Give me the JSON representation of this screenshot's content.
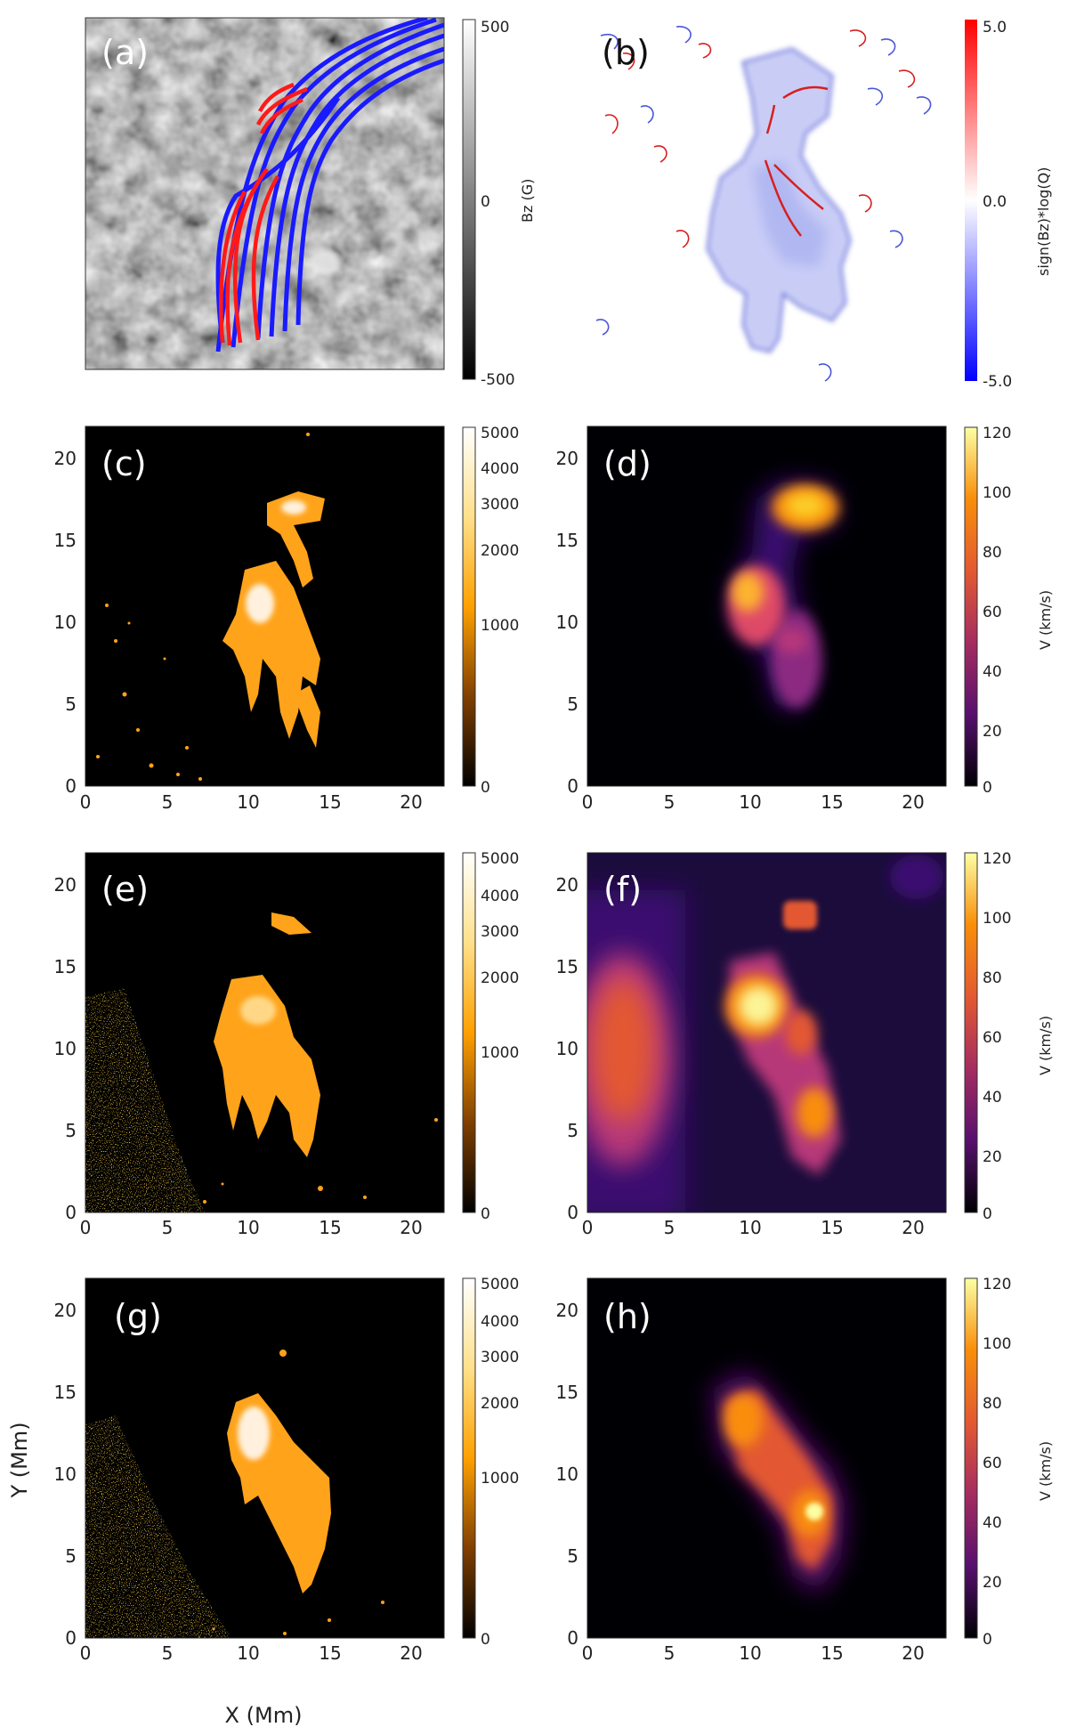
{
  "chart_data": [
    {
      "panel": "(a)",
      "type": "heatmap",
      "colorbar": {
        "label": "Bz (G)",
        "ticks": [
          "500",
          "0",
          "-500"
        ],
        "range": [
          -500,
          500
        ],
        "cmap": "gray"
      },
      "field_lines": {
        "colors": [
          "#1a1aff",
          "#ff1a1a"
        ]
      }
    },
    {
      "panel": "(b)",
      "type": "heatmap",
      "colorbar": {
        "label": "sign(Bz)*log(Q)",
        "ticks": [
          "5.0",
          "0.0",
          "-5.0"
        ],
        "range": [
          -5,
          5
        ],
        "cmap": "bwr"
      }
    },
    {
      "panel": "(c)",
      "type": "heatmap",
      "xlim": [
        0,
        22
      ],
      "ylim": [
        0,
        22
      ],
      "xticks": [
        "0",
        "5",
        "10",
        "15",
        "20"
      ],
      "yticks": [
        "0",
        "5",
        "10",
        "15",
        "20"
      ],
      "colorbar": {
        "label": "",
        "ticks": [
          "5000",
          "4000",
          "3000",
          "2000",
          "1000",
          "0"
        ],
        "range": [
          0,
          5000
        ],
        "cmap": "afmhot"
      }
    },
    {
      "panel": "(d)",
      "type": "heatmap",
      "xlim": [
        0,
        22
      ],
      "ylim": [
        0,
        22
      ],
      "xticks": [
        "0",
        "5",
        "10",
        "15",
        "20"
      ],
      "yticks": [
        "0",
        "5",
        "10",
        "15",
        "20"
      ],
      "colorbar": {
        "label": "V (km/s)",
        "ticks": [
          "120",
          "100",
          "80",
          "60",
          "40",
          "20",
          "0"
        ],
        "range": [
          0,
          120
        ],
        "cmap": "inferno"
      }
    },
    {
      "panel": "(e)",
      "type": "heatmap",
      "xlim": [
        0,
        22
      ],
      "ylim": [
        0,
        22
      ],
      "xticks": [
        "0",
        "5",
        "10",
        "15",
        "20"
      ],
      "yticks": [
        "0",
        "5",
        "10",
        "15",
        "20"
      ],
      "colorbar": {
        "label": "",
        "ticks": [
          "5000",
          "4000",
          "3000",
          "2000",
          "1000",
          "0"
        ],
        "range": [
          0,
          5000
        ],
        "cmap": "afmhot"
      }
    },
    {
      "panel": "(f)",
      "type": "heatmap",
      "xlim": [
        0,
        22
      ],
      "ylim": [
        0,
        22
      ],
      "xticks": [
        "0",
        "5",
        "10",
        "15",
        "20"
      ],
      "yticks": [
        "0",
        "5",
        "10",
        "15",
        "20"
      ],
      "colorbar": {
        "label": "V (km/s)",
        "ticks": [
          "120",
          "100",
          "80",
          "60",
          "40",
          "20",
          "0"
        ],
        "range": [
          0,
          120
        ],
        "cmap": "inferno"
      }
    },
    {
      "panel": "(g)",
      "type": "heatmap",
      "xlim": [
        0,
        22
      ],
      "ylim": [
        0,
        22
      ],
      "xticks": [
        "0",
        "5",
        "10",
        "15",
        "20"
      ],
      "yticks": [
        "0",
        "5",
        "10",
        "15",
        "20"
      ],
      "xlabel": "X (Mm)",
      "ylabel": "Y (Mm)",
      "colorbar": {
        "label": "",
        "ticks": [
          "5000",
          "4000",
          "3000",
          "2000",
          "1000",
          "0"
        ],
        "range": [
          0,
          5000
        ],
        "cmap": "afmhot"
      }
    },
    {
      "panel": "(h)",
      "type": "heatmap",
      "xlim": [
        0,
        22
      ],
      "ylim": [
        0,
        22
      ],
      "xticks": [
        "0",
        "5",
        "10",
        "15",
        "20"
      ],
      "yticks": [
        "0",
        "5",
        "10",
        "15",
        "20"
      ],
      "colorbar": {
        "label": "V (km/s)",
        "ticks": [
          "120",
          "100",
          "80",
          "60",
          "40",
          "20",
          "0"
        ],
        "range": [
          0,
          120
        ],
        "cmap": "inferno"
      }
    }
  ]
}
